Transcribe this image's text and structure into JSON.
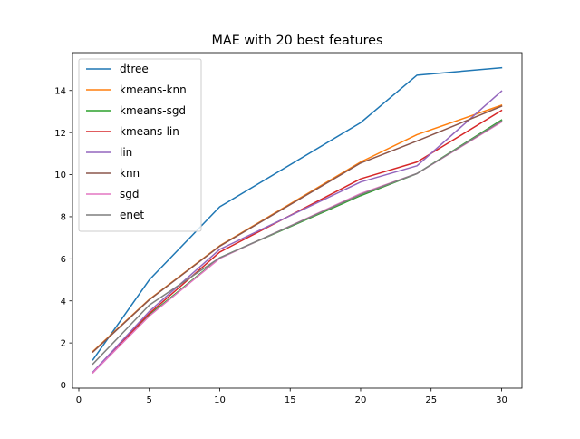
{
  "chart_data": {
    "type": "line",
    "title": "MAE with 20 best features",
    "xlabel": "",
    "ylabel": "",
    "x": [
      1,
      5,
      10,
      20,
      24,
      30
    ],
    "xlim": [
      -0.45,
      31.45
    ],
    "ylim": [
      -0.15,
      15.8
    ],
    "xticks": [
      0,
      5,
      10,
      15,
      20,
      25,
      30
    ],
    "yticks": [
      0,
      2,
      4,
      6,
      8,
      10,
      12,
      14
    ],
    "grid": false,
    "legend": "top-left",
    "series": [
      {
        "name": "dtree",
        "color": "#1f77b4",
        "values": [
          1.2,
          5.0,
          8.47,
          12.47,
          14.73,
          15.08
        ]
      },
      {
        "name": "kmeans-knn",
        "color": "#ff7f0e",
        "values": [
          1.6,
          4.07,
          6.62,
          10.6,
          11.9,
          13.3
        ]
      },
      {
        "name": "kmeans-sgd",
        "color": "#2ca02c",
        "values": [
          0.6,
          3.33,
          6.05,
          9.0,
          10.05,
          12.6
        ]
      },
      {
        "name": "kmeans-lin",
        "color": "#d62728",
        "values": [
          0.6,
          3.4,
          6.32,
          9.8,
          10.6,
          13.05
        ]
      },
      {
        "name": "lin",
        "color": "#9467bd",
        "values": [
          0.62,
          3.5,
          6.45,
          9.65,
          10.42,
          13.97
        ]
      },
      {
        "name": "knn",
        "color": "#8c564b",
        "values": [
          1.57,
          4.05,
          6.6,
          10.55,
          11.6,
          13.25
        ]
      },
      {
        "name": "sgd",
        "color": "#e377c2",
        "values": [
          0.58,
          3.28,
          6.02,
          9.1,
          10.05,
          12.5
        ]
      },
      {
        "name": "enet",
        "color": "#7f7f7f",
        "values": [
          1.0,
          3.8,
          6.05,
          9.05,
          10.05,
          12.55
        ]
      }
    ]
  }
}
